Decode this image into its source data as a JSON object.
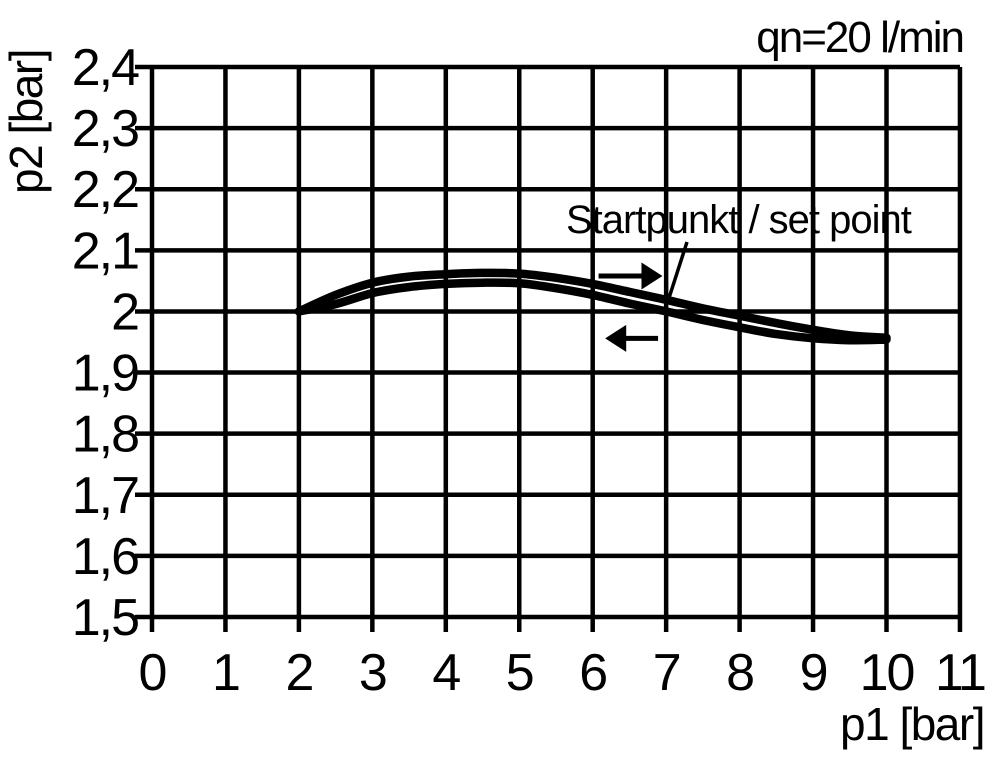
{
  "colors": {
    "ink": "#000000",
    "background": "#ffffff"
  },
  "chart_data": {
    "type": "line",
    "title": "qn=20 l/min",
    "xlabel": "p1 [bar]",
    "ylabel": "p2 [bar]",
    "xlim": [
      0,
      11
    ],
    "ylim": [
      1.5,
      2.4
    ],
    "grid": true,
    "x_axis": {
      "label": "p1 [bar]",
      "ticks": [
        {
          "label": "0",
          "value": 0
        },
        {
          "label": "1",
          "value": 1
        },
        {
          "label": "2",
          "value": 2
        },
        {
          "label": "3",
          "value": 3
        },
        {
          "label": "4",
          "value": 4
        },
        {
          "label": "5",
          "value": 5
        },
        {
          "label": "6",
          "value": 6
        },
        {
          "label": "7",
          "value": 7
        },
        {
          "label": "8",
          "value": 8
        },
        {
          "label": "9",
          "value": 9
        },
        {
          "label": "10",
          "value": 10
        },
        {
          "label": "11",
          "value": 11
        }
      ]
    },
    "y_axis": {
      "label": "p2 [bar]",
      "ticks": [
        {
          "label": "2,4",
          "value": 2.4
        },
        {
          "label": "2,3",
          "value": 2.3
        },
        {
          "label": "2,2",
          "value": 2.2
        },
        {
          "label": "2,1",
          "value": 2.1
        },
        {
          "label": "2",
          "value": 2.0
        },
        {
          "label": "1,9",
          "value": 1.9
        },
        {
          "label": "1,8",
          "value": 1.8
        },
        {
          "label": "1,7",
          "value": 1.7
        },
        {
          "label": "1,6",
          "value": 1.6
        },
        {
          "label": "1,5",
          "value": 1.5
        }
      ]
    },
    "series": [
      {
        "name": "upper curve (increasing p1, arrow right)",
        "x": [
          2,
          2.5,
          3,
          3.5,
          4,
          4.5,
          5,
          5.5,
          6,
          6.5,
          7,
          7.5,
          8,
          8.5,
          9,
          9.5,
          10
        ],
        "y": [
          2.0,
          2.027,
          2.047,
          2.057,
          2.061,
          2.063,
          2.062,
          2.055,
          2.045,
          2.032,
          2.019,
          2.005,
          1.993,
          1.981,
          1.97,
          1.961,
          1.957
        ]
      },
      {
        "name": "lower curve (decreasing p1, arrow left)",
        "x": [
          2,
          2.5,
          3,
          3.5,
          4,
          4.5,
          5,
          5.5,
          6,
          6.5,
          7,
          7.5,
          8,
          8.5,
          9,
          9.5,
          10
        ],
        "y": [
          2.0,
          2.012,
          2.03,
          2.04,
          2.045,
          2.047,
          2.046,
          2.038,
          2.027,
          2.013,
          2.0,
          1.986,
          1.974,
          1.963,
          1.956,
          1.953,
          1.954
        ]
      }
    ],
    "annotations": [
      {
        "type": "label-leader",
        "text": "Startpunkt / set point",
        "target_x": 7.02,
        "target_y": 2.015
      },
      {
        "type": "arrow",
        "direction": "right",
        "x_tail": 6.08,
        "x_tip": 6.95,
        "y": 2.058
      },
      {
        "type": "arrow",
        "direction": "left",
        "x_tail": 6.89,
        "x_tip": 6.17,
        "y": 1.956
      }
    ]
  }
}
